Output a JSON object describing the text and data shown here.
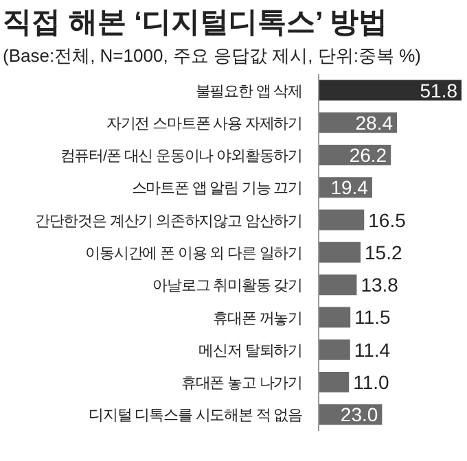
{
  "chart_data": {
    "type": "bar",
    "orientation": "horizontal",
    "title": "직접 해본 ‘디지털디톡스’ 방법",
    "subtitle": "(Base:전체, N=1000, 주요 응답값 제시, 단위:중복 %)",
    "categories": [
      "불필요한 앱 삭제",
      "자기전 스마트폰 사용 자제하기",
      "컴퓨터/폰 대신 운동이나 야외활동하기",
      "스마트폰 앱 알림 기능 끄기",
      "간단한것은 계산기 의존하지않고 암산하기",
      "이동시간에 폰 이용 외 다른 일하기",
      "아날로그 취미활동 갖기",
      "휴대폰 꺼놓기",
      "메신저 탈퇴하기",
      "휴대폰 놓고 나가기",
      "디지털 디톡스를 시도해본 적 없음"
    ],
    "values": [
      51.8,
      28.4,
      26.2,
      19.4,
      16.5,
      15.2,
      13.8,
      11.5,
      11.4,
      11.0,
      23.0
    ],
    "value_labels": [
      "51.8",
      "28.4",
      "26.2",
      "19.4",
      "16.5",
      "15.2",
      "13.8",
      "11.5",
      "11.4",
      "11.0",
      "23.0"
    ],
    "colors": [
      "#2e2e2e",
      "#6a6a6a",
      "#6a6a6a",
      "#6a6a6a",
      "#6a6a6a",
      "#6a6a6a",
      "#6a6a6a",
      "#6a6a6a",
      "#6a6a6a",
      "#6a6a6a",
      "#6a6a6a"
    ]
  }
}
